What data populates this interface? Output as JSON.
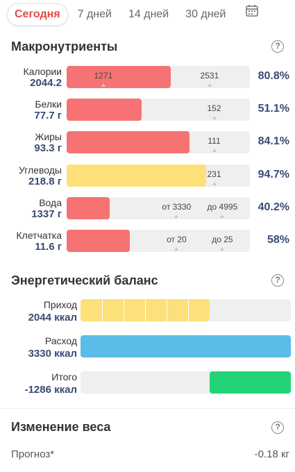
{
  "tabs": [
    "Сегодня",
    "7 дней",
    "14 дней",
    "30 дней"
  ],
  "icons": {
    "calendar": "calendar-icon",
    "help": "help-icon"
  },
  "colors": {
    "accent": "#e24a43",
    "red": "#f77272",
    "yellow": "#fde07a",
    "blue": "#5bbbe9",
    "green": "#22d477",
    "value_text": "#3a4a75"
  },
  "macros": {
    "title": "Макронутриенты",
    "help": "?",
    "rows": [
      {
        "label": "Калории",
        "value": "2044.2",
        "color": "red",
        "fill": 0.568,
        "marks": [
          "1271",
          "2531"
        ],
        "mark_pos": [
          0.2,
          0.78
        ],
        "pct": "80.8%"
      },
      {
        "label": "Белки",
        "value": "77.7 г",
        "color": "red",
        "fill": 0.41,
        "marks": [
          "152"
        ],
        "mark_pos": [
          0.805
        ],
        "pct": "51.1%"
      },
      {
        "label": "Жиры",
        "value": "93.3 г",
        "color": "red",
        "fill": 0.67,
        "marks": [
          "111"
        ],
        "mark_pos": [
          0.805
        ],
        "pct": "84.1%"
      },
      {
        "label": "Углеводы",
        "value": "218.8 г",
        "color": "yellow",
        "fill": 0.76,
        "marks": [
          "231"
        ],
        "mark_pos": [
          0.805
        ],
        "pct": "94.7%"
      },
      {
        "label": "Вода",
        "value": "1337 г",
        "color": "red",
        "fill": 0.235,
        "marks": [
          "от 3330",
          "до 4995"
        ],
        "mark_pos": [
          0.6,
          0.85
        ],
        "pct": "40.2%"
      },
      {
        "label": "Клетчатка",
        "value": "11.6 г",
        "color": "red",
        "fill": 0.345,
        "marks": [
          "от 20",
          "до 25"
        ],
        "mark_pos": [
          0.6,
          0.85
        ],
        "pct": "58%"
      }
    ]
  },
  "energy": {
    "title": "Энергетический баланс",
    "help": "?",
    "rows": [
      {
        "label": "Приход",
        "value": "2044 ккал",
        "color": "yellow",
        "from": 0.0,
        "fill": 0.615,
        "segments": 6
      },
      {
        "label": "Расход",
        "value": "3330 ккал",
        "color": "blue",
        "from": 0.0,
        "fill": 1.0,
        "segments": 0
      },
      {
        "label": "Итого",
        "value": "-1286 ккал",
        "color": "green",
        "from": 0.615,
        "fill": 0.385,
        "segments": 0
      }
    ]
  },
  "weight": {
    "title": "Изменение веса",
    "help": "?",
    "forecast_label": "Прогноз*",
    "forecast_value": "-0.18 кг"
  }
}
